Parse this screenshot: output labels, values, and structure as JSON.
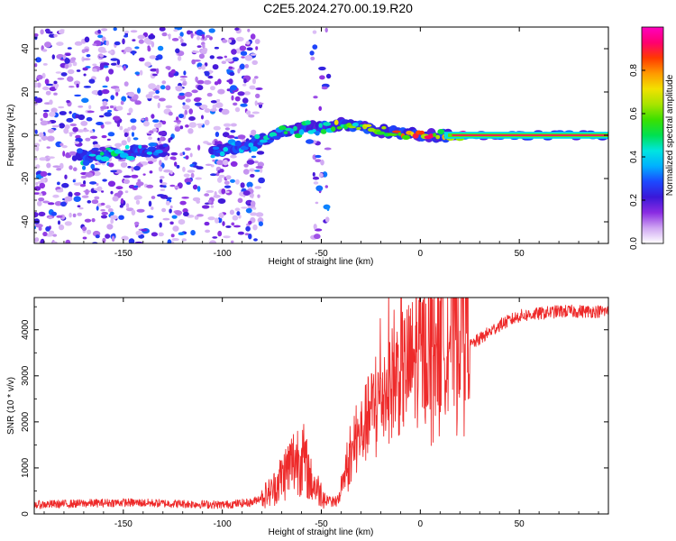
{
  "title": "C2E5.2024.270.00.19.R20",
  "chart_data": [
    {
      "type": "heatmap",
      "xlabel": "Height of straight line (km)",
      "ylabel": "Frequency (Hz)",
      "xlim": [
        -195,
        95
      ],
      "ylim": [
        -50,
        50
      ],
      "xticks": [
        -150,
        -100,
        -50,
        0,
        50
      ],
      "yticks": [
        -40,
        -20,
        0,
        20,
        40
      ],
      "colorbar": {
        "label": "Normalized spectral amplitude",
        "range": [
          0,
          1
        ],
        "ticks": [
          "0.0",
          "0.2",
          "0.4",
          "0.6",
          "0.8"
        ],
        "colors": [
          "#ffffff",
          "#cfa6f2",
          "#8a2be2",
          "#3a18d8",
          "#1c49ff",
          "#00b0ff",
          "#00e5e0",
          "#00e050",
          "#3be000",
          "#a8e400",
          "#f2e100",
          "#ff9900",
          "#ff3a00",
          "#ff0070",
          "#ff00c0"
        ]
      },
      "ridge": [
        {
          "x": -170,
          "y": -10,
          "amp": 0.45
        },
        {
          "x": -150,
          "y": -8,
          "amp": 0.5
        },
        {
          "x": -130,
          "y": -7,
          "amp": 0.35
        },
        {
          "x": -100,
          "y": -7,
          "amp": 0.4
        },
        {
          "x": -85,
          "y": -4,
          "amp": 0.45
        },
        {
          "x": -70,
          "y": 1,
          "amp": 0.5
        },
        {
          "x": -60,
          "y": 3,
          "amp": 0.5
        },
        {
          "x": -50,
          "y": 4,
          "amp": 0.55
        },
        {
          "x": -40,
          "y": 5,
          "amp": 0.75
        },
        {
          "x": -30,
          "y": 4,
          "amp": 0.7
        },
        {
          "x": -20,
          "y": 2,
          "amp": 0.8
        },
        {
          "x": -10,
          "y": 1,
          "amp": 0.85
        },
        {
          "x": 0,
          "y": 0,
          "amp": 0.9
        },
        {
          "x": 10,
          "y": 0,
          "amp": 0.9
        },
        {
          "x": 20,
          "y": 0,
          "amp": 0.95
        },
        {
          "x": 50,
          "y": 0,
          "amp": 0.95
        },
        {
          "x": 95,
          "y": 0,
          "amp": 0.95
        }
      ]
    },
    {
      "type": "line",
      "xlabel": "Height of straight line (km)",
      "ylabel": "SNR (10 * v/v)",
      "xlim": [
        -195,
        95
      ],
      "ylim": [
        0,
        4700
      ],
      "xticks": [
        -150,
        -100,
        -50,
        0,
        50
      ],
      "yticks": [
        0,
        1000,
        2000,
        3000,
        4000
      ],
      "color": "#ee2a2a",
      "envelope": [
        {
          "x": -195,
          "y": 200
        },
        {
          "x": -150,
          "y": 250
        },
        {
          "x": -100,
          "y": 200
        },
        {
          "x": -85,
          "y": 250
        },
        {
          "x": -75,
          "y": 500
        },
        {
          "x": -65,
          "y": 1100
        },
        {
          "x": -60,
          "y": 1300
        },
        {
          "x": -55,
          "y": 700
        },
        {
          "x": -48,
          "y": 350
        },
        {
          "x": -42,
          "y": 350
        },
        {
          "x": -38,
          "y": 700
        },
        {
          "x": -32,
          "y": 1300
        },
        {
          "x": -25,
          "y": 1800
        },
        {
          "x": -18,
          "y": 2200
        },
        {
          "x": -10,
          "y": 2500
        },
        {
          "x": 0,
          "y": 2800
        },
        {
          "x": 10,
          "y": 3100
        },
        {
          "x": 20,
          "y": 3500
        },
        {
          "x": 30,
          "y": 3800
        },
        {
          "x": 40,
          "y": 4100
        },
        {
          "x": 50,
          "y": 4300
        },
        {
          "x": 70,
          "y": 4400
        },
        {
          "x": 95,
          "y": 4400
        }
      ]
    }
  ]
}
